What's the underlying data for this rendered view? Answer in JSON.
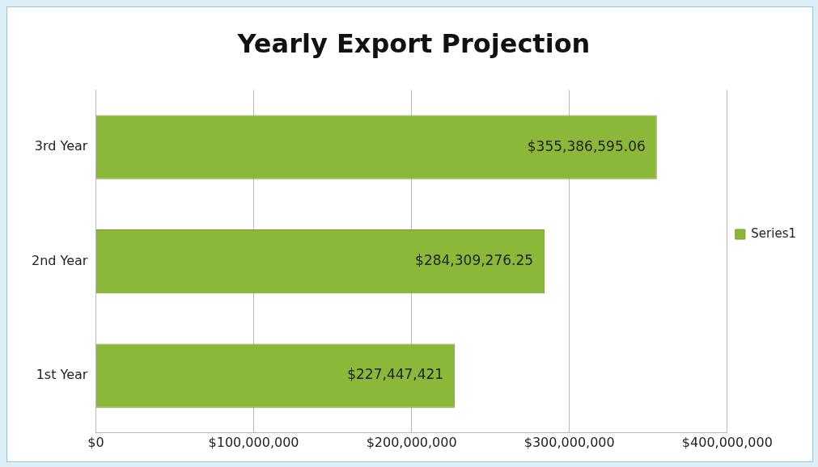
{
  "chart_data": {
    "type": "bar",
    "title": "Yearly Export Projection",
    "orientation": "horizontal",
    "categories": [
      "3rd Year",
      "2nd Year",
      "1st Year"
    ],
    "series": [
      {
        "name": "Series1",
        "color": "#8cb83a",
        "values": [
          355386595.06,
          284309276.25,
          227447421
        ],
        "value_labels": [
          "$355,386,595.06",
          "$284,309,276.25",
          "$227,447,421"
        ]
      }
    ],
    "xlim": [
      0,
      400000000
    ],
    "xticks": [
      {
        "value": 0,
        "label": "$0"
      },
      {
        "value": 100000000,
        "label": "$100,000,000"
      },
      {
        "value": 200000000,
        "label": "$200,000,000"
      },
      {
        "value": 300000000,
        "label": "$300,000,000"
      },
      {
        "value": 400000000,
        "label": "$400,000,000"
      }
    ],
    "grid": "x",
    "legend": "right"
  }
}
